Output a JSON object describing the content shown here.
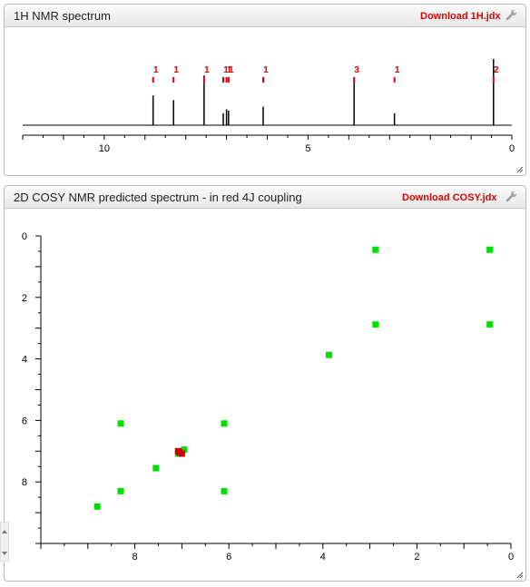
{
  "panels": {
    "nmr1h": {
      "title": "1H NMR spectrum",
      "download_label": "Download 1H.jdx"
    },
    "cosy": {
      "title": "2D COSY NMR predicted spectrum - in red 4J coupling",
      "download_label": "Download COSY.jdx"
    }
  },
  "icons": {
    "settings": "wrench-icon",
    "resize": "resize-grip-icon",
    "scroll": "scroll-arrows-icon"
  },
  "colors": {
    "link": "#e00000",
    "cosy_cross_peak": "#00e000",
    "cosy_4j": "#cc0000",
    "spectrum": "#000000"
  },
  "chart_data": [
    {
      "type": "line",
      "xlim": [
        12,
        0
      ],
      "x_ticks": [
        10,
        5,
        0
      ],
      "peaks": [
        {
          "shift": 8.8,
          "height": 0.45,
          "integral_label": "1"
        },
        {
          "shift": 8.3,
          "height": 0.38,
          "integral_label": "1"
        },
        {
          "shift": 7.55,
          "height": 0.75,
          "integral_label": "1"
        },
        {
          "shift": 7.08,
          "height": 0.18,
          "integral_label": "1"
        },
        {
          "shift": 7.0,
          "height": 0.24,
          "integral_label": "1"
        },
        {
          "shift": 6.95,
          "height": 0.22,
          "integral_label": "1"
        },
        {
          "shift": 6.1,
          "height": 0.28,
          "integral_label": "1"
        },
        {
          "shift": 3.87,
          "height": 0.65,
          "integral_label": "3"
        },
        {
          "shift": 2.88,
          "height": 0.18,
          "integral_label": "1"
        },
        {
          "shift": 0.45,
          "height": 1.0,
          "integral_label": "2"
        }
      ]
    },
    {
      "type": "scatter",
      "xlim": [
        10,
        0
      ],
      "ylim": [
        0,
        10
      ],
      "x_ticks": [
        8,
        6,
        4,
        2,
        0
      ],
      "y_ticks": [
        0,
        2,
        4,
        6,
        8
      ],
      "series": [
        {
          "color": "#00e000",
          "points": [
            [
              8.8,
              8.8
            ],
            [
              8.3,
              8.3
            ],
            [
              8.3,
              6.1
            ],
            [
              6.1,
              8.3
            ],
            [
              6.1,
              6.1
            ],
            [
              7.55,
              7.55
            ],
            [
              7.08,
              7.08
            ],
            [
              7.0,
              7.0
            ],
            [
              6.95,
              6.95
            ],
            [
              3.87,
              3.87
            ],
            [
              2.88,
              2.88
            ],
            [
              2.88,
              0.45
            ],
            [
              0.45,
              2.88
            ],
            [
              0.45,
              0.45
            ]
          ]
        },
        {
          "color": "#cc0000",
          "points": [
            [
              7.08,
              7.0
            ],
            [
              7.0,
              7.08
            ],
            [
              7.05,
              7.04
            ]
          ]
        }
      ]
    }
  ]
}
